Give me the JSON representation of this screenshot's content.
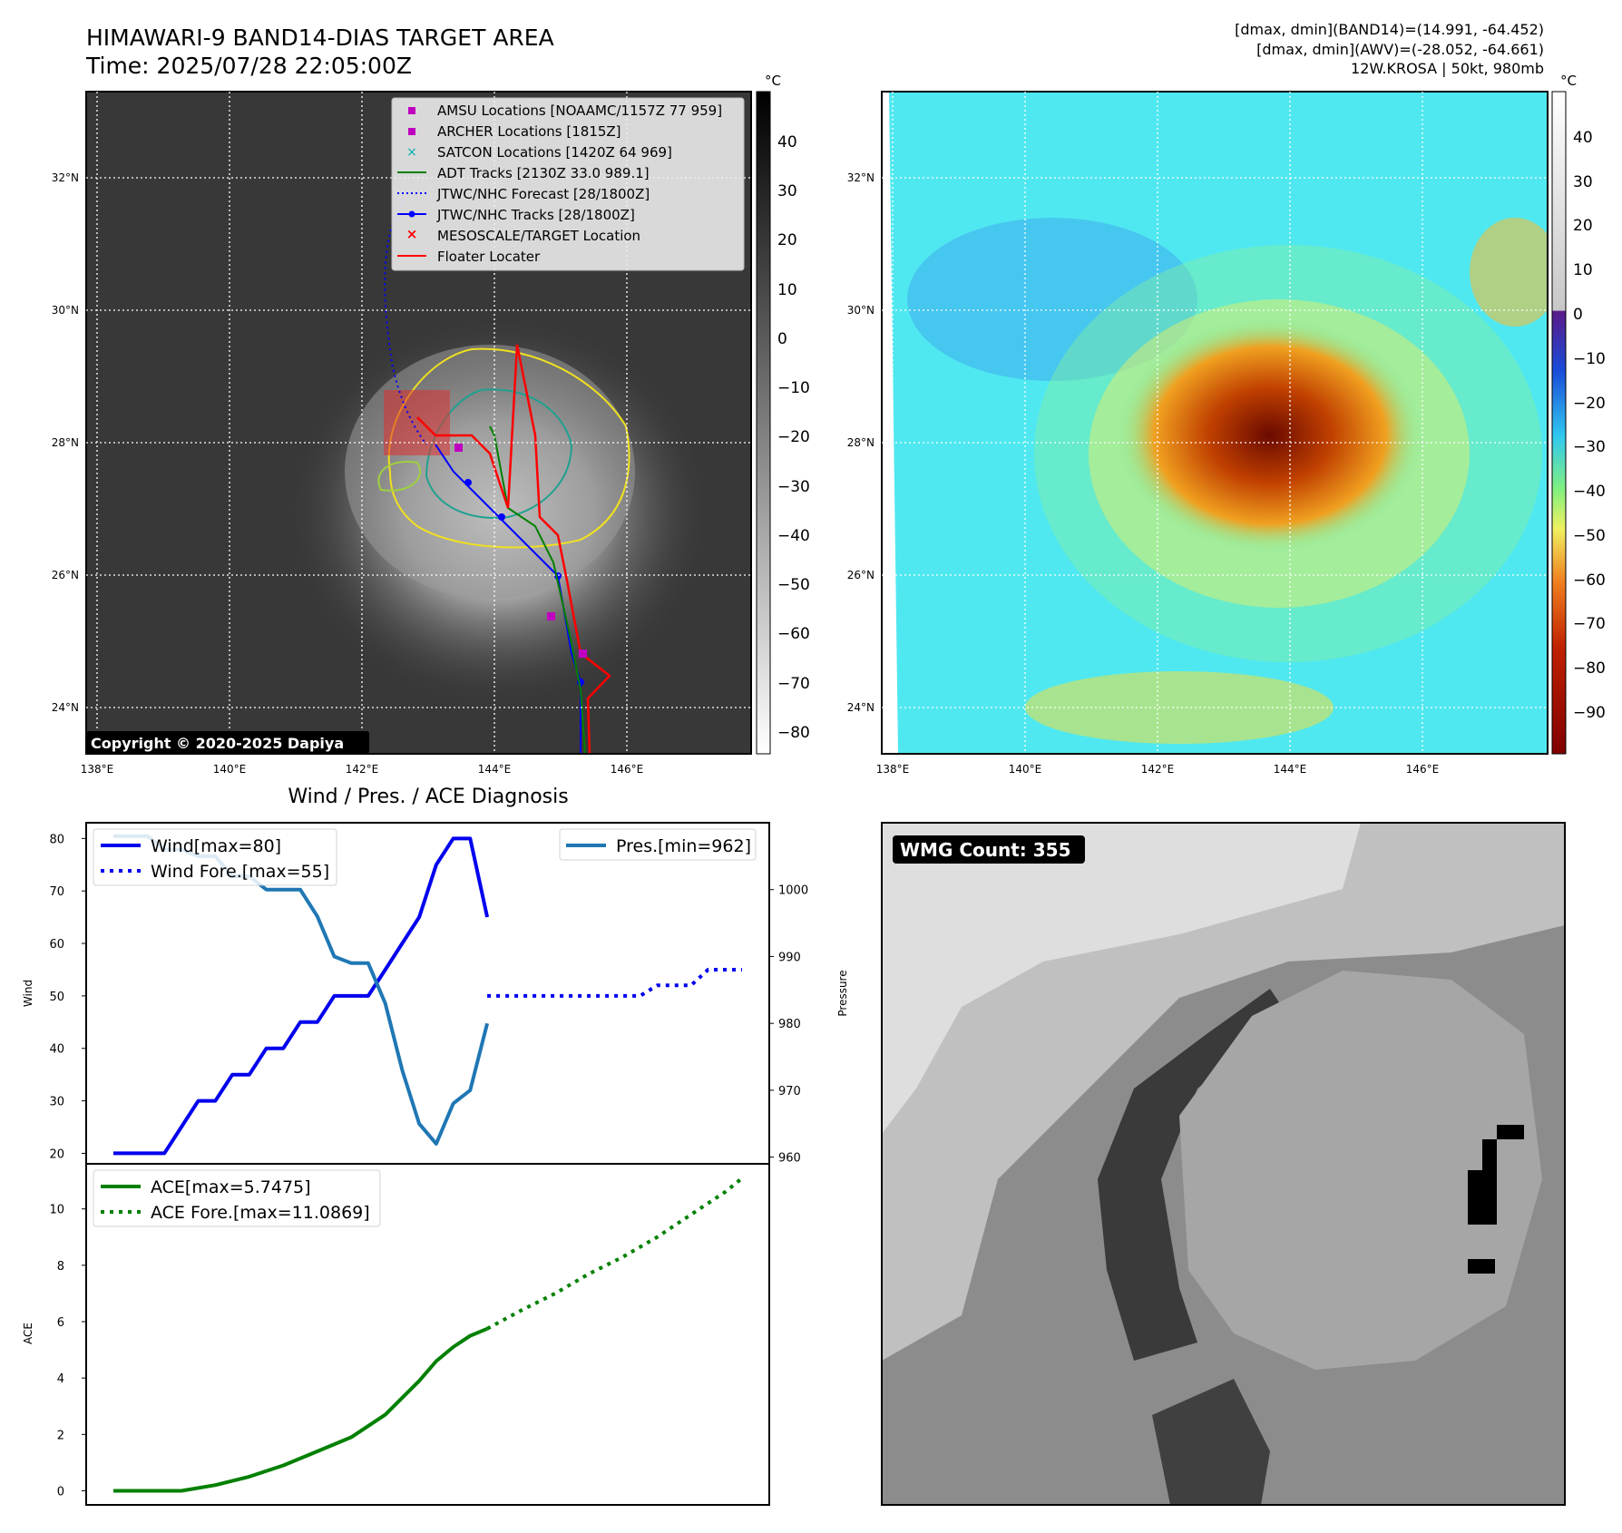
{
  "header": {
    "title_line1": "HIMAWARI-9 BAND14-DIAS TARGET AREA",
    "title_line2": "Time: 2025/07/28 22:05:00Z",
    "info_line1": "[dmax, dmin](BAND14)=(14.991, -64.452)",
    "info_line2": "[dmax, dmin](AWV)=(-28.052, -64.661)",
    "info_line3": "12W.KROSA | 50kt, 980mb"
  },
  "map": {
    "lon_labels": [
      "138°E",
      "140°E",
      "142°E",
      "144°E",
      "146°E"
    ],
    "lat_labels": [
      "32°N",
      "30°N",
      "28°N",
      "26°N",
      "24°N"
    ],
    "copyright": "Copyright © 2020-2025 Dapiya",
    "legend": [
      {
        "label": "AMSU Locations [NOAAMC/1157Z 77 959]",
        "color": "#c000c0",
        "marker": "square"
      },
      {
        "label": "ARCHER Locations [1815Z]",
        "color": "#c000c0",
        "marker": "square"
      },
      {
        "label": "SATCON Locations [1420Z 64 969]",
        "color": "#00b0b0",
        "marker": "x"
      },
      {
        "label": "ADT Tracks [2130Z 33.0 989.1]",
        "color": "#008000",
        "marker": "line"
      },
      {
        "label": "JTWC/NHC Forecast [28/1800Z]",
        "color": "#0000ff",
        "marker": "dotted"
      },
      {
        "label": "JTWC/NHC Tracks [28/1800Z]",
        "color": "#0000ff",
        "marker": "line-dot"
      },
      {
        "label": "MESOSCALE/TARGET Location",
        "color": "#ff0000",
        "marker": "x"
      },
      {
        "label": "Floater Locater",
        "color": "#ff0000",
        "marker": "line"
      }
    ]
  },
  "colorbar_bw": {
    "unit": "°C",
    "ticks": [
      "40",
      "30",
      "20",
      "10",
      "0",
      "−10",
      "−20",
      "−30",
      "−40",
      "−50",
      "−60",
      "−70",
      "−80"
    ]
  },
  "colorbar_color": {
    "unit": "°C",
    "ticks": [
      "40",
      "30",
      "20",
      "10",
      "0",
      "−10",
      "−20",
      "−30",
      "−40",
      "−50",
      "−60",
      "−70",
      "−80",
      "−90"
    ]
  },
  "wmg": {
    "label": "WMG Count: 355"
  },
  "chart_data": [
    {
      "type": "line",
      "title": "Wind / Pres. / ACE Diagnosis",
      "ylabel": "Wind",
      "y2label": "Pressure",
      "ylim": [
        18,
        83
      ],
      "y2lim": [
        959,
        1010
      ],
      "yticks": [
        20,
        30,
        40,
        50,
        60,
        70,
        80
      ],
      "y2ticks": [
        960,
        970,
        980,
        990,
        1000
      ],
      "legend_left": [
        "Wind[max=80]",
        "Wind Fore.[max=55]"
      ],
      "legend_right": [
        "Pres.[min=962]"
      ],
      "series": [
        {
          "name": "Wind[max=80]",
          "color": "#0000ee",
          "style": "solid",
          "x": [
            0,
            1,
            2,
            3,
            4,
            5,
            6,
            7,
            8,
            9,
            10,
            11,
            12,
            13,
            14,
            15,
            16,
            17,
            18,
            19,
            20,
            21,
            22
          ],
          "values": [
            20,
            20,
            20,
            20,
            25,
            30,
            30,
            35,
            35,
            40,
            40,
            45,
            45,
            50,
            50,
            50,
            55,
            60,
            65,
            75,
            80,
            80,
            65
          ]
        },
        {
          "name": "Wind Fore.[max=55]",
          "color": "#0000ee",
          "style": "dotted",
          "x": [
            22,
            23,
            24,
            25,
            26,
            27,
            28,
            29,
            30,
            31,
            32,
            33,
            34,
            35,
            36,
            37
          ],
          "values": [
            50,
            50,
            50,
            50,
            50,
            50,
            50,
            50,
            50,
            50,
            52,
            52,
            52,
            55,
            55,
            55
          ]
        },
        {
          "name": "Pres.[min=962]",
          "color": "#1f77b4",
          "style": "solid",
          "axis": "right",
          "x": [
            0,
            1,
            2,
            3,
            4,
            5,
            6,
            7,
            8,
            9,
            10,
            11,
            12,
            13,
            14,
            15,
            16,
            17,
            18,
            19,
            20,
            21,
            22
          ],
          "values": [
            1008,
            1008,
            1008,
            1006,
            1006,
            1005,
            1005,
            1002,
            1002,
            1000,
            1000,
            1000,
            996,
            990,
            989,
            989,
            983,
            973,
            965,
            962,
            968,
            970,
            980
          ]
        }
      ]
    },
    {
      "type": "line",
      "ylabel": "ACE",
      "ylim": [
        -0.5,
        11.6
      ],
      "yticks": [
        0,
        2,
        4,
        6,
        8,
        10
      ],
      "legend": [
        "ACE[max=5.7475]",
        "ACE Fore.[max=11.0869]"
      ],
      "series": [
        {
          "name": "ACE[max=5.7475]",
          "color": "#008000",
          "style": "solid",
          "x": [
            0,
            2,
            4,
            6,
            8,
            10,
            12,
            14,
            16,
            18,
            19,
            20,
            21,
            22
          ],
          "values": [
            0,
            0,
            0,
            0.2,
            0.5,
            0.9,
            1.4,
            1.9,
            2.7,
            3.9,
            4.6,
            5.1,
            5.5,
            5.75
          ]
        },
        {
          "name": "ACE Fore.[max=11.0869]",
          "color": "#008000",
          "style": "dotted",
          "x": [
            22,
            24,
            26,
            28,
            30,
            32,
            34,
            36,
            37
          ],
          "values": [
            5.75,
            6.4,
            7.0,
            7.7,
            8.3,
            9.0,
            9.8,
            10.6,
            11.09
          ]
        }
      ]
    }
  ]
}
